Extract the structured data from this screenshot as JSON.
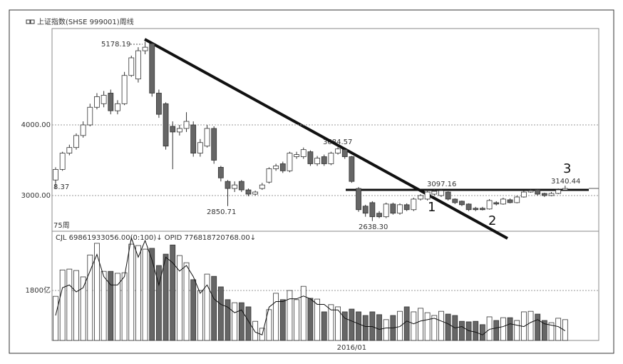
{
  "chart_data": [
    {
      "type": "candlestick",
      "title": "上证指数(SHSE 999001)周线",
      "categories": [
        null,
        null,
        null,
        null,
        null,
        null,
        null,
        null,
        null,
        null,
        null,
        null,
        null,
        null,
        null,
        null,
        null,
        null,
        null,
        null,
        null,
        null,
        null,
        null,
        null,
        null,
        null,
        null,
        null,
        null,
        null,
        null,
        null,
        null,
        null,
        null,
        null,
        null,
        null,
        null,
        null,
        null,
        null,
        "2016/01",
        null,
        null,
        null,
        null,
        null,
        null,
        null,
        null,
        null,
        null,
        null,
        null,
        null,
        null,
        null,
        null,
        null,
        null,
        null,
        null,
        null,
        null,
        null,
        null,
        null,
        null,
        null,
        null,
        null,
        null,
        null
      ],
      "open": [
        3220,
        3370,
        3600,
        3680,
        3850,
        4000,
        4250,
        4300,
        4450,
        4200,
        4300,
        4700,
        4650,
        5050,
        5150,
        4450,
        4300,
        3980,
        3900,
        3950,
        4000,
        3600,
        3700,
        3950,
        3400,
        3200,
        3100,
        3200,
        3080,
        3020,
        3100,
        3190,
        3380,
        3450,
        3350,
        3550,
        3550,
        3620,
        3450,
        3550,
        3450,
        3600,
        3650,
        3550,
        3100,
        2850,
        2900,
        2750,
        2700,
        2880,
        2750,
        2870,
        2800,
        2950,
        2950,
        3020,
        3000,
        3050,
        2950,
        2920,
        2880,
        2820,
        2820,
        2810,
        2900,
        2880,
        2940,
        2900,
        2980,
        3050,
        3080,
        3030,
        3000,
        3030,
        3080
      ],
      "high": [
        3400,
        3620,
        3720,
        3880,
        4050,
        4300,
        4450,
        4480,
        4500,
        4350,
        4750,
        4980,
        5100,
        5178.19,
        5160,
        4500,
        4320,
        4050,
        4000,
        4180,
        4050,
        3800,
        4000,
        3980,
        3420,
        3220,
        3200,
        3220,
        3100,
        3070,
        3180,
        3400,
        3450,
        3480,
        3620,
        3620,
        3680,
        3640,
        3560,
        3580,
        3620,
        3684.57,
        3660,
        3560,
        3120,
        2870,
        2920,
        2780,
        2900,
        2900,
        2890,
        2890,
        2970,
        3020,
        3080,
        3097.16,
        3090,
        3060,
        2960,
        2930,
        2890,
        2840,
        2840,
        2950,
        2920,
        2970,
        2960,
        3000,
        3070,
        3090,
        3090,
        3040,
        3050,
        3100,
        3140.44
      ],
      "low": [
        3100,
        3350,
        3570,
        3650,
        3820,
        3980,
        4220,
        4250,
        4150,
        4150,
        4280,
        4680,
        4600,
        5000,
        4400,
        4100,
        3650,
        3373,
        3850,
        3900,
        3550,
        3550,
        3680,
        3450,
        3200,
        2850.71,
        3050,
        3050,
        2990,
        3000,
        3080,
        3170,
        3350,
        3320,
        3330,
        3520,
        3520,
        3420,
        3420,
        3420,
        3430,
        3580,
        3520,
        3180,
        2770,
        2700,
        2638.3,
        2680,
        2680,
        2730,
        2730,
        2780,
        2780,
        2930,
        2930,
        3000,
        2980,
        2930,
        2880,
        2850,
        2780,
        2780,
        2790,
        2800,
        2860,
        2870,
        2890,
        2890,
        2970,
        3040,
        3000,
        2980,
        2990,
        3020,
        3070
      ],
      "close": [
        3370,
        3600,
        3680,
        3850,
        4000,
        4250,
        4400,
        4420,
        4200,
        4300,
        4700,
        4950,
        5050,
        5100,
        4450,
        4150,
        3700,
        3900,
        3950,
        4050,
        3600,
        3750,
        3950,
        3500,
        3250,
        3100,
        3150,
        3080,
        3020,
        3050,
        3150,
        3380,
        3420,
        3350,
        3600,
        3580,
        3650,
        3450,
        3530,
        3450,
        3600,
        3660,
        3550,
        3200,
        2800,
        2750,
        2700,
        2700,
        2880,
        2750,
        2870,
        2800,
        2950,
        3000,
        3050,
        3060,
        3070,
        2950,
        2900,
        2870,
        2800,
        2800,
        2800,
        2930,
        2880,
        2950,
        2900,
        2980,
        3050,
        3070,
        3020,
        3000,
        3030,
        3080,
        3100
      ],
      "up_color": "#ffffff",
      "down_color": "#666666",
      "ylim": [
        2515,
        5364
      ],
      "yticks": [
        {
          "value": 3000,
          "label": "3000.00"
        },
        {
          "value": 4000,
          "label": "4000.00"
        }
      ],
      "grid": true,
      "annotations": [
        "5178.19",
        "3684.57",
        "3097.16",
        "3140.44",
        "2850.71",
        "2638.30",
        "8.37",
        "75周",
        "1",
        "2",
        "3"
      ]
    },
    {
      "type": "bar",
      "title": "CJL  69861933056.00(0:100)↓  OPID  776818720768.00↓",
      "values": [
        1590,
        2540,
        2570,
        2520,
        2290,
        3080,
        3500,
        2490,
        2490,
        2420,
        2440,
        3470,
        3420,
        3290,
        3320,
        2700,
        3110,
        3440,
        3060,
        2800,
        2190,
        1800,
        2390,
        2310,
        1930,
        1470,
        1360,
        1360,
        1210,
        690,
        440,
        1110,
        1700,
        1470,
        1800,
        1470,
        1950,
        1520,
        1490,
        1030,
        1290,
        1210,
        1030,
        1130,
        1030,
        900,
        1030,
        930,
        750,
        900,
        1050,
        1210,
        1030,
        1160,
        1000,
        900,
        1050,
        950,
        900,
        690,
        670,
        690,
        570,
        850,
        720,
        820,
        820,
        720,
        1030,
        1050,
        950,
        720,
        640,
        800,
        750
      ],
      "ma": {
        "color": "#111111",
        "values": [
          900,
          1900,
          2000,
          1750,
          1900,
          2500,
          3100,
          2300,
          2000,
          2000,
          2300,
          3700,
          3000,
          3600,
          2900,
          2000,
          3000,
          2800,
          2500,
          2700,
          2300,
          1700,
          2000,
          1500,
          1300,
          1200,
          1000,
          1100,
          700,
          300,
          200,
          1200,
          1400,
          1400,
          1500,
          1500,
          1600,
          1500,
          1300,
          1300,
          1100,
          1100,
          800,
          700,
          600,
          500,
          500,
          400,
          450,
          450,
          500,
          700,
          600,
          700,
          750,
          800,
          700,
          600,
          450,
          500,
          350,
          300,
          200,
          400,
          450,
          500,
          600,
          550,
          500,
          650,
          750,
          600,
          550,
          500,
          350
        ]
      },
      "ylim": [
        0,
        3909
      ],
      "yticks": [
        {
          "value": 1800,
          "label": "1800亿"
        }
      ],
      "grid": true
    }
  ]
}
